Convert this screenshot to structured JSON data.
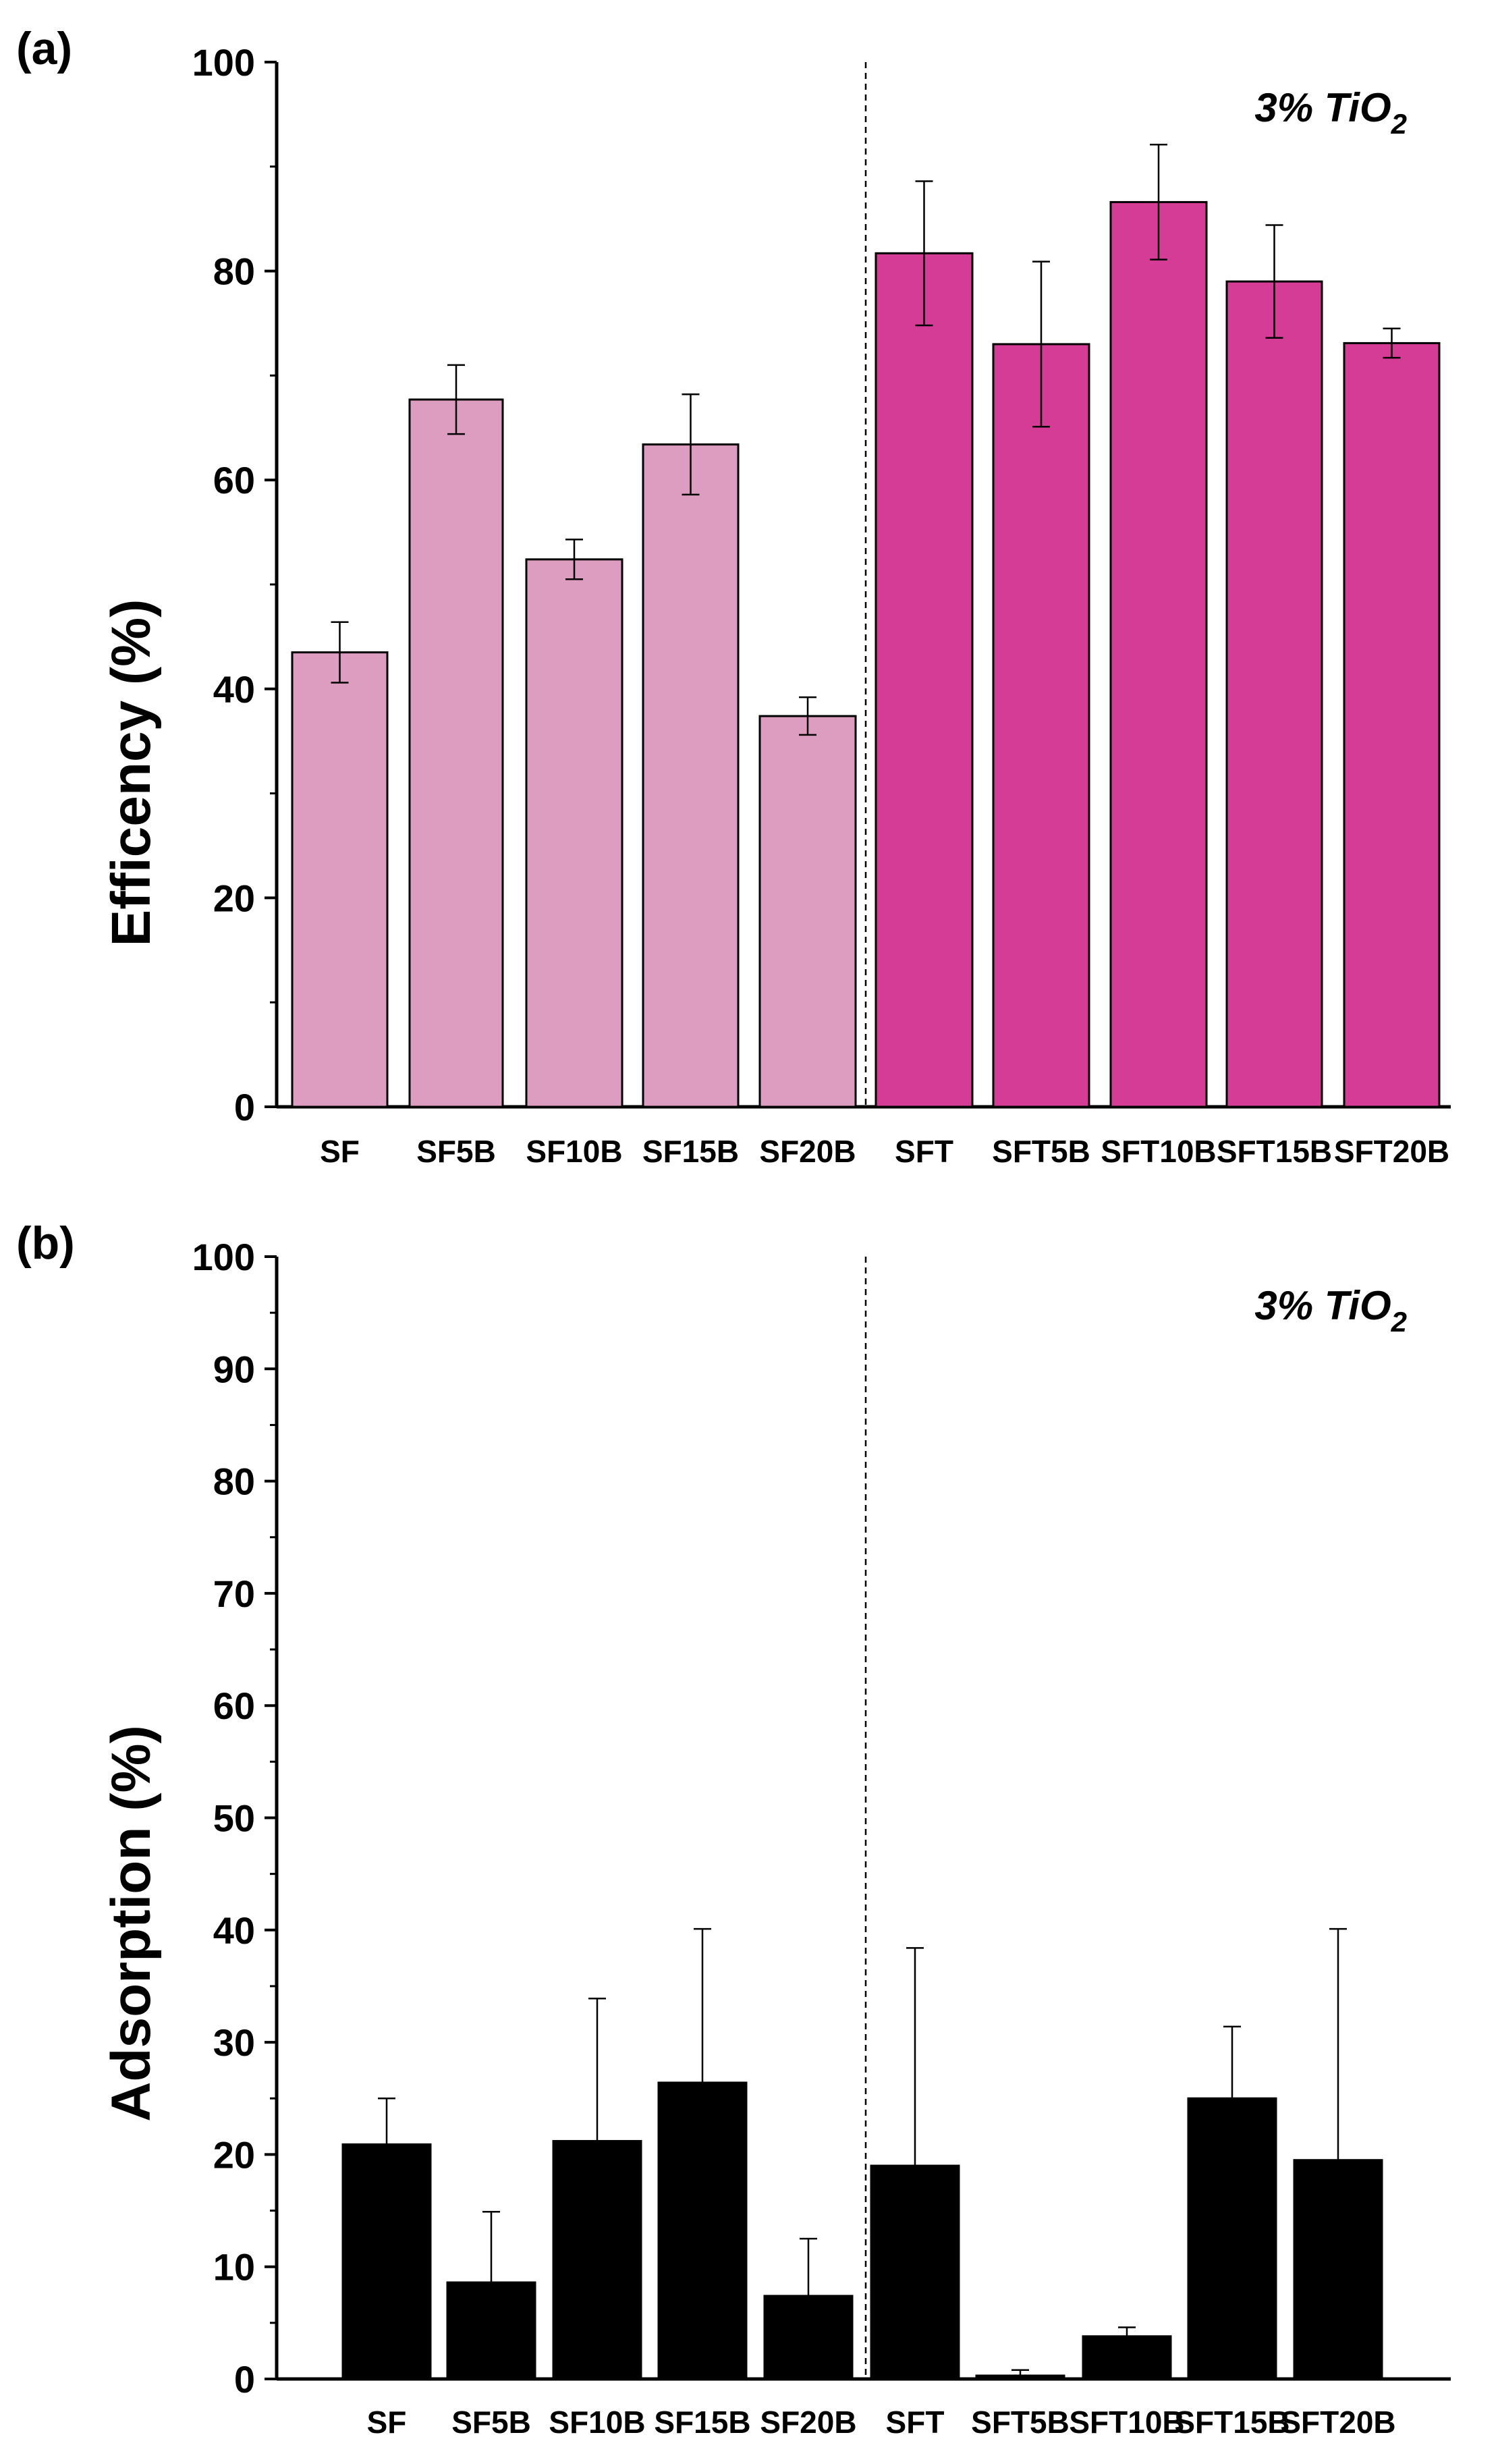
{
  "colors": {
    "bar_light": "#dc9dc0",
    "bar_dark": "#d43c95",
    "bar_black": "#000000",
    "axis": "#000000"
  },
  "chart_data": [
    {
      "type": "bar",
      "panel_label": "(a)",
      "annotation": "3% TiO",
      "annotation_subscript": "2",
      "xlabel": "",
      "ylabel": "Efficency (%)",
      "ylim": [
        0,
        100
      ],
      "yticks": [
        0,
        20,
        40,
        60,
        80,
        100
      ],
      "categories": [
        "SF",
        "SF5B",
        "SF10B",
        "SF15B",
        "SF20B",
        "SFT",
        "SFT5B",
        "SFT10B",
        "SFT15B",
        "SFT20B"
      ],
      "values": [
        43.5,
        67.7,
        52.4,
        63.4,
        37.4,
        81.7,
        73.0,
        86.6,
        79.0,
        73.1
      ],
      "errors": [
        2.9,
        3.3,
        1.9,
        4.8,
        1.8,
        6.9,
        7.9,
        5.5,
        5.4,
        1.4
      ],
      "bar_colors": [
        "light",
        "light",
        "light",
        "light",
        "light",
        "dark",
        "dark",
        "dark",
        "dark",
        "dark"
      ],
      "divider_after_index": 4
    },
    {
      "type": "bar",
      "panel_label": "(b)",
      "annotation": "3% TiO",
      "annotation_subscript": "2",
      "xlabel": "",
      "ylabel": "Adsorption (%)",
      "ylim": [
        0,
        100
      ],
      "yticks": [
        0,
        10,
        20,
        30,
        40,
        50,
        60,
        70,
        80,
        90,
        100
      ],
      "categories": [
        "SF",
        "SF5B",
        "SF10B",
        "SF15B",
        "SF20B",
        "SFT",
        "SFT5B",
        "SFT10B",
        "SFT15B",
        "SFT20B"
      ],
      "values": [
        20.9,
        8.6,
        21.2,
        26.4,
        7.4,
        19.0,
        0.3,
        3.8,
        25.0,
        19.5
      ],
      "errors": [
        4.1,
        6.3,
        12.7,
        13.7,
        5.1,
        19.4,
        0.5,
        0.8,
        6.4,
        20.6
      ],
      "error_style": "upper",
      "bar_colors": [
        "black",
        "black",
        "black",
        "black",
        "black",
        "black",
        "black",
        "black",
        "black",
        "black"
      ],
      "divider_after_index": 4
    }
  ]
}
